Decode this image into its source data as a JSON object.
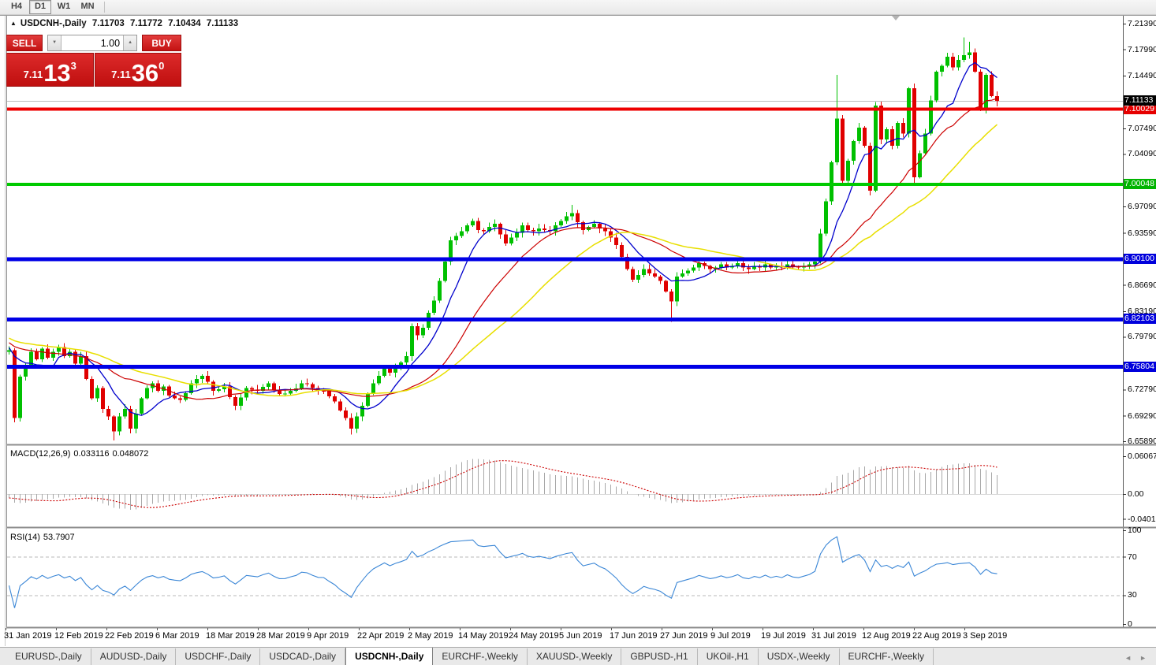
{
  "toolbar": {
    "timeframes": [
      {
        "label": "H4",
        "active": false
      },
      {
        "label": "D1",
        "active": true
      },
      {
        "label": "W1",
        "active": false
      },
      {
        "label": "MN",
        "active": false
      }
    ]
  },
  "chart": {
    "collapse_icon": "▲",
    "title": "USDCNH-,Daily",
    "open": "7.11703",
    "high": "7.11772",
    "low": "7.10434",
    "close": "7.11133"
  },
  "one_click": {
    "sell_label": "SELL",
    "buy_label": "BUY",
    "volume": "1.00",
    "spin_down_icon": "▼",
    "spin_up_icon": "▲",
    "sell_small": "7.11",
    "sell_big": "13",
    "sell_sup": "3",
    "buy_small": "7.11",
    "buy_big": "36",
    "buy_sup": "0"
  },
  "indicators": {
    "macd": {
      "label": "MACD(12,26,9)",
      "value_main": "0.033116",
      "value_signal": "0.048072"
    },
    "rsi": {
      "label": "RSI(14)",
      "value": "53.7907"
    }
  },
  "tabbar": {
    "nav_left": "◄",
    "nav_right": "►",
    "tabs": [
      {
        "label": "EURUSD-,Daily",
        "active": false
      },
      {
        "label": "AUDUSD-,Daily",
        "active": false
      },
      {
        "label": "USDCHF-,Daily",
        "active": false
      },
      {
        "label": "USDCAD-,Daily",
        "active": false
      },
      {
        "label": "USDCNH-,Daily",
        "active": true
      },
      {
        "label": "EURCHF-,Weekly",
        "active": false
      },
      {
        "label": "XAUUSD-,Weekly",
        "active": false
      },
      {
        "label": "GBPUSD-,H1",
        "active": false
      },
      {
        "label": "UKOil-,H1",
        "active": false
      },
      {
        "label": "USDX-,Weekly",
        "active": false
      },
      {
        "label": "EURCHF-,Weekly",
        "active": false
      }
    ]
  },
  "chart_data": {
    "type": "candlestick",
    "symbol": "USDCNH-",
    "period": "Daily",
    "current_ohlc": {
      "open": 7.11703,
      "high": 7.11772,
      "low": 7.10434,
      "close": 7.11133
    },
    "price_axis_labels": [
      {
        "text": "7.21390",
        "value": 7.2139
      },
      {
        "text": "7.17990",
        "value": 7.1799
      },
      {
        "text": "7.14490",
        "value": 7.1449
      },
      {
        "text": "7.07490",
        "value": 7.0749
      },
      {
        "text": "7.04090",
        "value": 7.0409
      },
      {
        "text": "6.97090",
        "value": 6.9709
      },
      {
        "text": "6.93590",
        "value": 6.9359
      },
      {
        "text": "6.86690",
        "value": 6.8669
      },
      {
        "text": "6.83190",
        "value": 6.8319
      },
      {
        "text": "6.79790",
        "value": 6.7979
      },
      {
        "text": "6.72790",
        "value": 6.7279
      },
      {
        "text": "6.69290",
        "value": 6.6929
      },
      {
        "text": "6.65890",
        "value": 6.6589
      }
    ],
    "level_lines": [
      {
        "label": "7.10029",
        "value": 7.10029,
        "color": "#ee0000",
        "box_bg": "#e60000",
        "width": 4
      },
      {
        "label": "7.00048",
        "value": 7.00048,
        "color": "#00ca00",
        "box_bg": "#00b400",
        "width": 4
      },
      {
        "label": "6.90100",
        "value": 6.901,
        "color": "#0000e6",
        "box_bg": "#0000dc",
        "width": 5
      },
      {
        "label": "6.82103",
        "value": 6.82103,
        "color": "#0000e6",
        "box_bg": "#0000dc",
        "width": 5
      },
      {
        "label": "6.75804",
        "value": 6.75804,
        "color": "#0000e6",
        "box_bg": "#0000dc",
        "width": 5
      }
    ],
    "current_price_line": {
      "label": "7.11133",
      "value": 7.11133,
      "color": "#bdbdbd",
      "box_bg": "#000000"
    },
    "x_labels": [
      "31 Jan 2019",
      "12 Feb 2019",
      "22 Feb 2019",
      "6 Mar 2019",
      "18 Mar 2019",
      "28 Mar 2019",
      "9 Apr 2019",
      "22 Apr 2019",
      "2 May 2019",
      "14 May 2019",
      "24 May 2019",
      "5 Jun 2019",
      "17 Jun 2019",
      "27 Jun 2019",
      "9 Jul 2019",
      "19 Jul 2019",
      "31 Jul 2019",
      "12 Aug 2019",
      "22 Aug 2019",
      "3 Sep 2019"
    ],
    "macd_axis": [
      {
        "text": "0.060674",
        "value": 0.060674
      },
      {
        "text": "0.00",
        "value": 0
      },
      {
        "text": "-0.040152",
        "value": -0.040152
      }
    ],
    "rsi_axis": [
      {
        "text": "100",
        "value": 100
      },
      {
        "text": "70",
        "value": 70
      },
      {
        "text": "30",
        "value": 30
      },
      {
        "text": "0",
        "value": 0
      }
    ],
    "rsi_guides": [
      70,
      30
    ],
    "ma_periods": {
      "fast": 8,
      "mid": 21,
      "slow": 34
    },
    "close_anchors": [
      [
        0,
        6.78
      ],
      [
        1,
        6.69
      ],
      [
        2,
        6.745
      ],
      [
        3,
        6.76
      ],
      [
        4,
        6.778
      ],
      [
        5,
        6.768
      ],
      [
        6,
        6.782
      ],
      [
        7,
        6.77
      ],
      [
        8,
        6.778
      ],
      [
        9,
        6.784
      ],
      [
        10,
        6.772
      ],
      [
        11,
        6.778
      ],
      [
        12,
        6.762
      ],
      [
        13,
        6.772
      ],
      [
        14,
        6.742
      ],
      [
        15,
        6.716
      ],
      [
        16,
        6.73
      ],
      [
        17,
        6.702
      ],
      [
        18,
        6.692
      ],
      [
        19,
        6.672
      ],
      [
        20,
        6.692
      ],
      [
        21,
        6.702
      ],
      [
        22,
        6.676
      ],
      [
        23,
        6.696
      ],
      [
        24,
        6.716
      ],
      [
        25,
        6.73
      ],
      [
        26,
        6.736
      ],
      [
        27,
        6.726
      ],
      [
        28,
        6.732
      ],
      [
        29,
        6.72
      ],
      [
        31,
        6.714
      ],
      [
        33,
        6.736
      ],
      [
        35,
        6.746
      ],
      [
        37,
        6.726
      ],
      [
        39,
        6.732
      ],
      [
        41,
        6.706
      ],
      [
        43,
        6.73
      ],
      [
        45,
        6.726
      ],
      [
        47,
        6.736
      ],
      [
        49,
        6.722
      ],
      [
        51,
        6.726
      ],
      [
        53,
        6.736
      ],
      [
        55,
        6.73
      ],
      [
        57,
        6.726
      ],
      [
        59,
        6.712
      ],
      [
        60,
        6.7
      ],
      [
        61,
        6.69
      ],
      [
        62,
        6.676
      ],
      [
        63,
        6.692
      ],
      [
        64,
        6.706
      ],
      [
        65,
        6.722
      ],
      [
        66,
        6.736
      ],
      [
        67,
        6.746
      ],
      [
        68,
        6.756
      ],
      [
        69,
        6.75
      ],
      [
        70,
        6.758
      ],
      [
        71,
        6.764
      ],
      [
        72,
        6.772
      ],
      [
        73,
        6.812
      ],
      [
        74,
        6.8
      ],
      [
        75,
        6.81
      ],
      [
        76,
        6.83
      ],
      [
        77,
        6.846
      ],
      [
        78,
        6.872
      ],
      [
        79,
        6.898
      ],
      [
        80,
        6.926
      ],
      [
        81,
        6.932
      ],
      [
        82,
        6.938
      ],
      [
        83,
        6.946
      ],
      [
        84,
        6.952
      ],
      [
        85,
        6.94
      ],
      [
        86,
        6.938
      ],
      [
        87,
        6.944
      ],
      [
        88,
        6.948
      ],
      [
        89,
        6.934
      ],
      [
        90,
        6.922
      ],
      [
        91,
        6.93
      ],
      [
        92,
        6.936
      ],
      [
        93,
        6.946
      ],
      [
        94,
        6.94
      ],
      [
        95,
        6.938
      ],
      [
        96,
        6.942
      ],
      [
        97,
        6.94
      ],
      [
        98,
        6.938
      ],
      [
        99,
        6.946
      ],
      [
        100,
        6.952
      ],
      [
        101,
        6.958
      ],
      [
        102,
        6.962
      ],
      [
        103,
        6.95
      ],
      [
        104,
        6.94
      ],
      [
        105,
        6.944
      ],
      [
        106,
        6.948
      ],
      [
        107,
        6.942
      ],
      [
        108,
        6.938
      ],
      [
        109,
        6.93
      ],
      [
        110,
        6.92
      ],
      [
        111,
        6.904
      ],
      [
        112,
        6.888
      ],
      [
        113,
        6.874
      ],
      [
        114,
        6.88
      ],
      [
        115,
        6.888
      ],
      [
        116,
        6.882
      ],
      [
        117,
        6.878
      ],
      [
        118,
        6.872
      ],
      [
        119,
        6.858
      ],
      [
        120,
        6.845
      ],
      [
        121,
        6.878
      ],
      [
        122,
        6.882
      ],
      [
        123,
        6.886
      ],
      [
        124,
        6.89
      ],
      [
        125,
        6.896
      ],
      [
        126,
        6.892
      ],
      [
        127,
        6.888
      ],
      [
        128,
        6.89
      ],
      [
        129,
        6.894
      ],
      [
        130,
        6.89
      ],
      [
        131,
        6.892
      ],
      [
        132,
        6.896
      ],
      [
        133,
        6.89
      ],
      [
        134,
        6.888
      ],
      [
        135,
        6.892
      ],
      [
        136,
        6.89
      ],
      [
        137,
        6.894
      ],
      [
        138,
        6.89
      ],
      [
        139,
        6.892
      ],
      [
        140,
        6.89
      ],
      [
        141,
        6.894
      ],
      [
        142,
        6.891
      ],
      [
        143,
        6.89
      ],
      [
        144,
        6.892
      ],
      [
        145,
        6.894
      ],
      [
        146,
        6.898
      ],
      [
        147,
        6.935
      ],
      [
        148,
        6.978
      ],
      [
        149,
        7.03
      ],
      [
        150,
        7.088
      ],
      [
        151,
        7.005
      ],
      [
        152,
        7.032
      ],
      [
        153,
        7.058
      ],
      [
        154,
        7.076
      ],
      [
        155,
        7.052
      ],
      [
        156,
        6.992
      ],
      [
        157,
        7.105
      ],
      [
        158,
        7.06
      ],
      [
        159,
        7.074
      ],
      [
        160,
        7.052
      ],
      [
        161,
        7.082
      ],
      [
        162,
        7.068
      ],
      [
        163,
        7.128
      ],
      [
        164,
        7.01
      ],
      [
        165,
        7.042
      ],
      [
        166,
        7.068
      ],
      [
        167,
        7.112
      ],
      [
        168,
        7.15
      ],
      [
        169,
        7.158
      ],
      [
        170,
        7.17
      ],
      [
        171,
        7.156
      ],
      [
        172,
        7.166
      ],
      [
        173,
        7.172
      ],
      [
        174,
        7.176
      ],
      [
        175,
        7.15
      ],
      [
        176,
        7.1
      ],
      [
        177,
        7.146
      ],
      [
        178,
        7.118
      ],
      [
        179,
        7.1113
      ]
    ],
    "wicks": {
      "19": {
        "lo": 6.66
      },
      "62": {
        "lo": 6.668
      },
      "102": {
        "hi": 6.973
      },
      "120": {
        "lo": 6.818
      },
      "150": {
        "hi": 7.146
      },
      "164": {
        "lo": 7.0
      },
      "173": {
        "hi": 7.196
      },
      "174": {
        "hi": 7.19
      },
      "179": {
        "lo": 7.1043
      }
    },
    "colors": {
      "bull": "#00c000",
      "bear": "#e00000",
      "ma_fast": "#0000cc",
      "ma_mid": "#cc0000",
      "ma_slow": "#e8df00",
      "macd_hist": "#a8a8a8",
      "macd_signal": "#cc0000",
      "rsi_line": "#3a86d6"
    }
  }
}
